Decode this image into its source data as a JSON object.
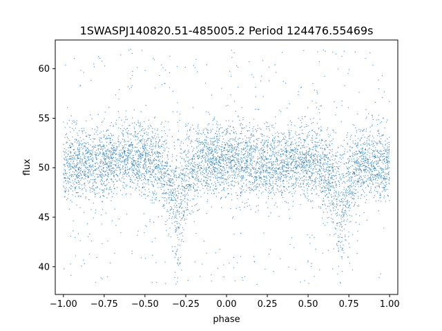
{
  "chart_data": {
    "type": "scatter",
    "title": "1SWASPJ140820.51-485005.2 Period 124476.55469s",
    "xlabel": "phase",
    "ylabel": "flux",
    "xlim": [
      -1.05,
      1.05
    ],
    "ylim": [
      37.2,
      62.9
    ],
    "xticks": [
      -1.0,
      -0.75,
      -0.5,
      -0.25,
      0.0,
      0.25,
      0.5,
      0.75,
      1.0
    ],
    "xtick_labels": [
      "−1.00",
      "−0.75",
      "−0.50",
      "−0.25",
      "0.00",
      "0.25",
      "0.50",
      "0.75",
      "1.00"
    ],
    "yticks": [
      40,
      45,
      50,
      55,
      60
    ],
    "ytick_labels": [
      "40",
      "45",
      "50",
      "55",
      "60"
    ],
    "grid": false,
    "legend": "none",
    "marker_color": "#1f77b4",
    "series": [
      {
        "phase_profile": {
          "phase": [
            -1.0,
            -0.8,
            -0.6,
            -0.45,
            -0.38,
            -0.33,
            -0.3,
            -0.27,
            -0.22,
            -0.15,
            0.0,
            0.15,
            0.3,
            0.45,
            0.55,
            0.62,
            0.67,
            0.7,
            0.73,
            0.78,
            0.85,
            1.0
          ],
          "median_flux": [
            50.3,
            50.6,
            51.0,
            50.6,
            49.6,
            47.8,
            45.8,
            47.8,
            49.8,
            50.7,
            51.0,
            50.4,
            50.3,
            50.8,
            50.7,
            49.6,
            47.8,
            45.8,
            47.8,
            49.8,
            50.7,
            50.3
          ],
          "scatter_band_halfwidth": 2.0,
          "outlier_range": [
            38.2,
            62.0
          ]
        }
      }
    ]
  }
}
